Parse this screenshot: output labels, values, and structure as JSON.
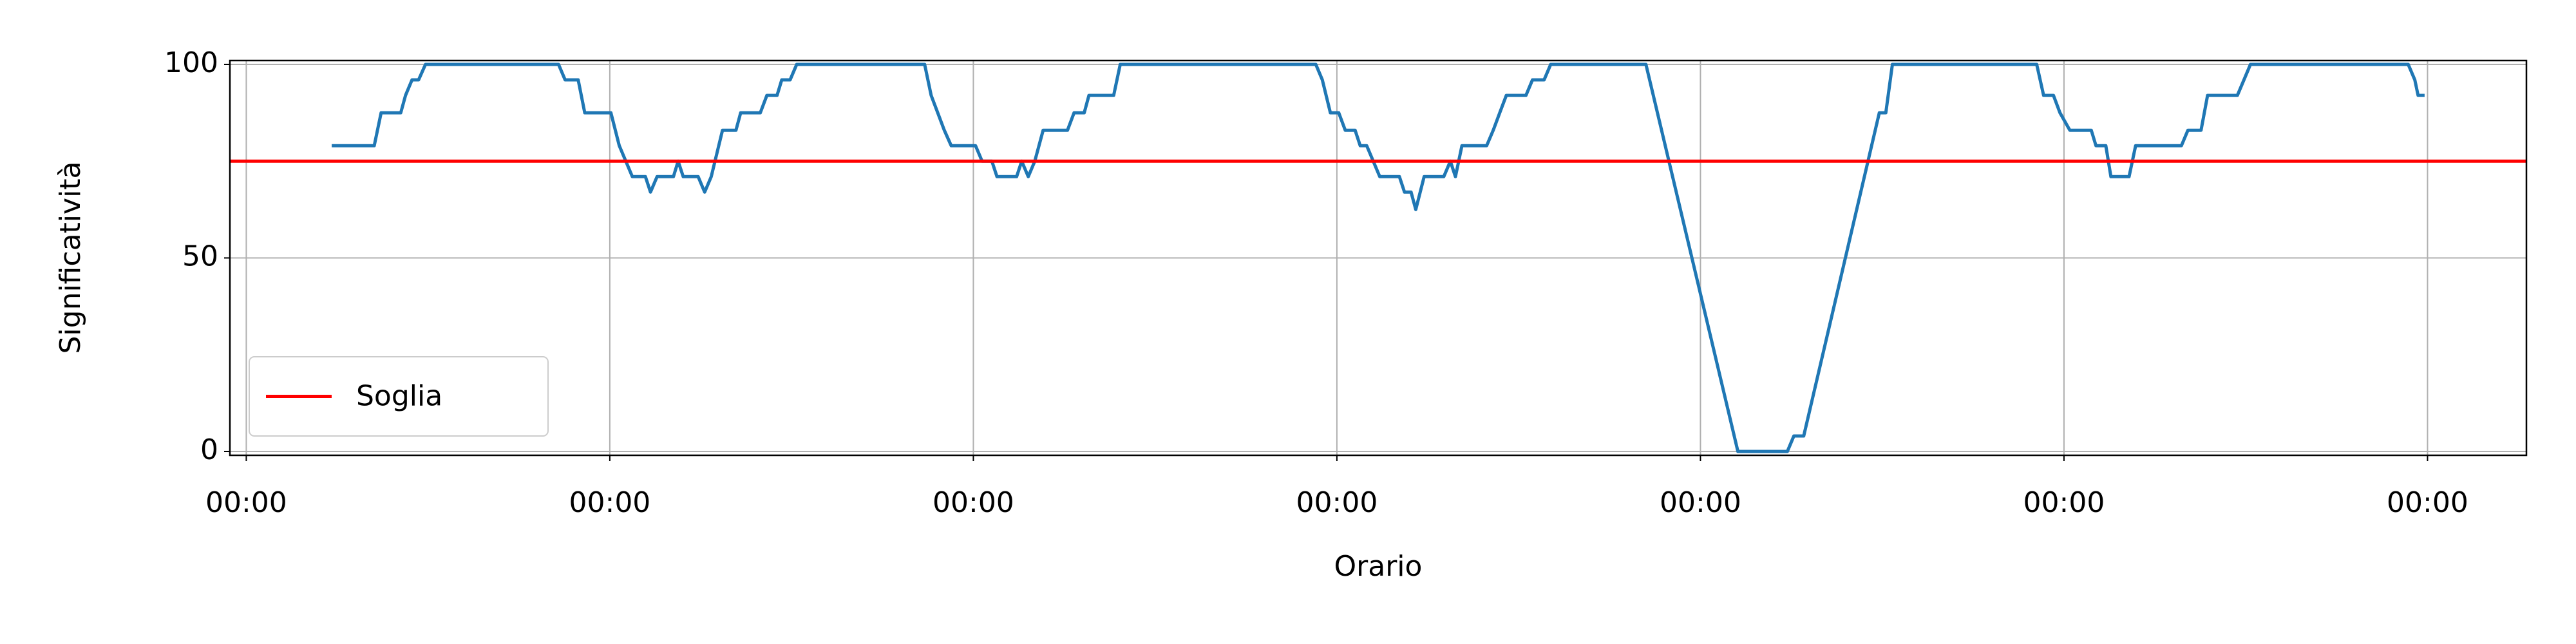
{
  "chart_data": {
    "type": "line",
    "xlabel": "Orario",
    "ylabel": "Significatività",
    "xlim": [
      -0.045,
      6.272
    ],
    "ylim": [
      -1,
      101
    ],
    "xticks": [
      {
        "value": 0,
        "label": "00:00"
      },
      {
        "value": 1,
        "label": "00:00"
      },
      {
        "value": 2,
        "label": "00:00"
      },
      {
        "value": 3,
        "label": "00:00"
      },
      {
        "value": 4,
        "label": "00:00"
      },
      {
        "value": 5,
        "label": "00:00"
      },
      {
        "value": 6,
        "label": "00:00"
      }
    ],
    "yticks": [
      0,
      50,
      100
    ],
    "grid": true,
    "legend": "lower left",
    "series": [
      {
        "color": "#1f77b4",
        "x": [
          0.235,
          0.352,
          0.371,
          0.425,
          0.438,
          0.456,
          0.474,
          0.493,
          0.859,
          0.877,
          0.913,
          0.931,
          1.003,
          1.026,
          1.062,
          1.098,
          1.112,
          1.13,
          1.175,
          1.188,
          1.202,
          1.243,
          1.261,
          1.279,
          1.31,
          1.347,
          1.36,
          1.414,
          1.432,
          1.46,
          1.473,
          1.496,
          1.514,
          1.866,
          1.884,
          1.902,
          1.92,
          1.939,
          2.006,
          2.024,
          2.051,
          2.065,
          2.119,
          2.133,
          2.151,
          2.169,
          2.192,
          2.259,
          2.277,
          2.305,
          2.318,
          2.386,
          2.404,
          2.942,
          2.96,
          2.982,
          3.005,
          3.023,
          3.05,
          3.064,
          3.082,
          3.1,
          3.118,
          3.172,
          3.186,
          3.204,
          3.217,
          3.24,
          3.294,
          3.312,
          3.326,
          3.344,
          3.412,
          3.43,
          3.448,
          3.466,
          3.52,
          3.538,
          3.57,
          3.588,
          3.85,
          4.103,
          4.239,
          4.257,
          4.284,
          4.492,
          4.51,
          4.528,
          4.925,
          4.944,
          4.971,
          4.989,
          5.016,
          5.075,
          5.088,
          5.115,
          5.129,
          5.179,
          5.197,
          5.323,
          5.341,
          5.377,
          5.395,
          5.477,
          5.495,
          5.513,
          5.947,
          5.965,
          5.974,
          5.992
        ],
        "values": [
          79,
          79,
          87.5,
          87.5,
          92,
          96,
          96,
          100,
          100,
          96,
          96,
          87.5,
          87.5,
          79,
          71,
          71,
          67,
          71,
          71,
          75,
          71,
          71,
          67,
          71,
          83,
          83,
          87.5,
          87.5,
          92,
          92,
          96,
          96,
          100,
          100,
          92,
          87.5,
          83,
          79,
          79,
          75,
          75,
          71,
          71,
          75,
          71,
          75,
          83,
          83,
          87.5,
          87.5,
          92,
          92,
          100,
          100,
          96,
          87.5,
          87.5,
          83,
          83,
          79,
          79,
          75,
          71,
          71,
          67,
          67,
          62.5,
          71,
          71,
          75,
          71,
          79,
          79,
          83,
          87.5,
          92,
          92,
          96,
          96,
          100,
          100,
          0,
          0,
          4,
          4,
          87.5,
          87.5,
          100,
          100,
          92,
          92,
          87.5,
          83,
          83,
          79,
          79,
          71,
          71,
          79,
          79,
          83,
          83,
          92,
          92,
          96,
          100,
          100,
          96,
          92,
          92
        ]
      }
    ],
    "threshold": {
      "name": "Soglia",
      "value": 75,
      "color": "#ff0000"
    }
  }
}
